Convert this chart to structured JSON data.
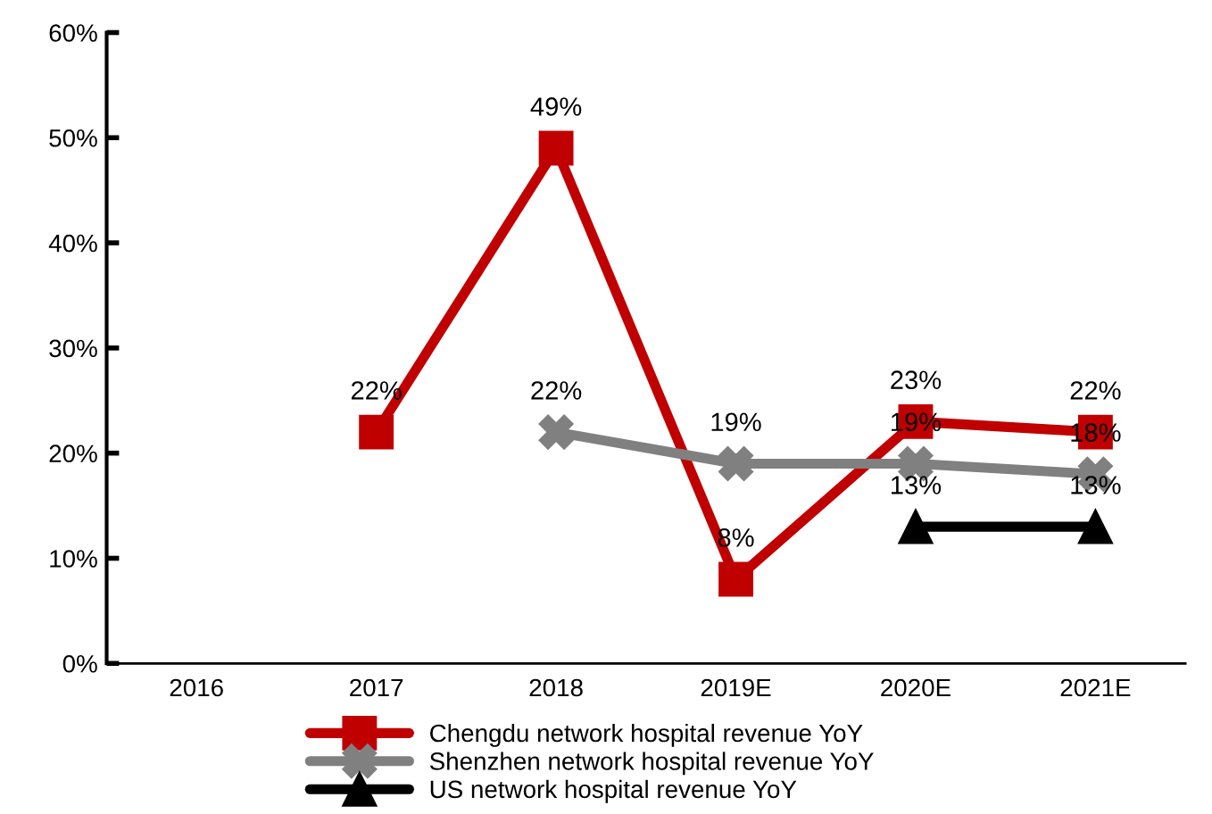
{
  "chart_data": {
    "type": "line",
    "categories": [
      "2016",
      "2017",
      "2018",
      "2019E",
      "2020E",
      "2021E"
    ],
    "series": [
      {
        "name": "Chengdu network hospital revenue YoY",
        "color": "#c00000",
        "marker": "square",
        "values": [
          null,
          22,
          49,
          8,
          23,
          22
        ],
        "value_labels": [
          null,
          "22%",
          "49%",
          "8%",
          "23%",
          "22%"
        ]
      },
      {
        "name": "Shenzhen network hospital revenue YoY",
        "color": "#808080",
        "marker": "cross",
        "values": [
          null,
          null,
          22,
          19,
          19,
          18
        ],
        "value_labels": [
          null,
          null,
          "22%",
          "19%",
          "19%",
          "18%"
        ]
      },
      {
        "name": "US network hospital revenue YoY",
        "color": "#000000",
        "marker": "triangle",
        "values": [
          null,
          null,
          null,
          null,
          13,
          13
        ],
        "value_labels": [
          null,
          null,
          null,
          null,
          "13%",
          "13%"
        ]
      }
    ],
    "ylim": [
      0,
      60
    ],
    "yticks": [
      {
        "value": 0,
        "label": "0%"
      },
      {
        "value": 10,
        "label": "10%"
      },
      {
        "value": 20,
        "label": "20%"
      },
      {
        "value": 30,
        "label": "30%"
      },
      {
        "value": 40,
        "label": "40%"
      },
      {
        "value": 50,
        "label": "50%"
      },
      {
        "value": 60,
        "label": "60%"
      }
    ],
    "grid": false,
    "legend": "bottom",
    "line_style": "solid"
  }
}
